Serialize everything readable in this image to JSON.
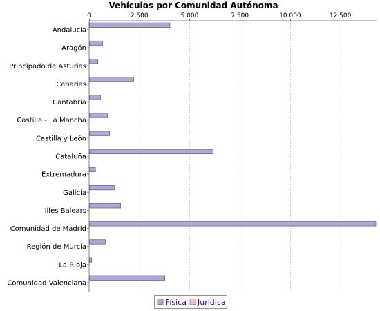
{
  "chart_data": {
    "type": "bar",
    "orientation": "horizontal",
    "title": "Vehículos por Comunidad Autónoma",
    "xlabel": "",
    "ylabel": "",
    "xlim": [
      0,
      14300
    ],
    "x_ticks": [
      0,
      2500,
      5000,
      7500,
      10000,
      12500
    ],
    "x_tick_labels": [
      "0",
      "2.500",
      "5.000",
      "7.500",
      "10.000",
      "12.500"
    ],
    "axis_position": "top",
    "grid": true,
    "legend_position": "bottom-center",
    "categories": [
      "Andalucía",
      "Aragón",
      "Principado de Asturias",
      "Canarias",
      "Cantabria",
      "Castilla - La Mancha",
      "Castilla y León",
      "Cataluña",
      "Extremadura",
      "Galicia",
      "Illes Balears",
      "Comunidad de Madrid",
      "Región de Murcia",
      "La Rioja",
      "Comunidad Valenciana"
    ],
    "series": [
      {
        "name": "Física",
        "color": "#b3a6d4",
        "stroke": "#6e6390",
        "values": [
          4000,
          650,
          420,
          2200,
          550,
          900,
          1000,
          6150,
          300,
          1250,
          1550,
          14250,
          800,
          110,
          3750
        ]
      },
      {
        "name": "Jurídica",
        "color": "#f2c2c2",
        "stroke": "#a08080",
        "values": [
          0,
          0,
          0,
          0,
          0,
          0,
          0,
          0,
          0,
          0,
          0,
          0,
          0,
          0,
          0
        ]
      }
    ]
  }
}
